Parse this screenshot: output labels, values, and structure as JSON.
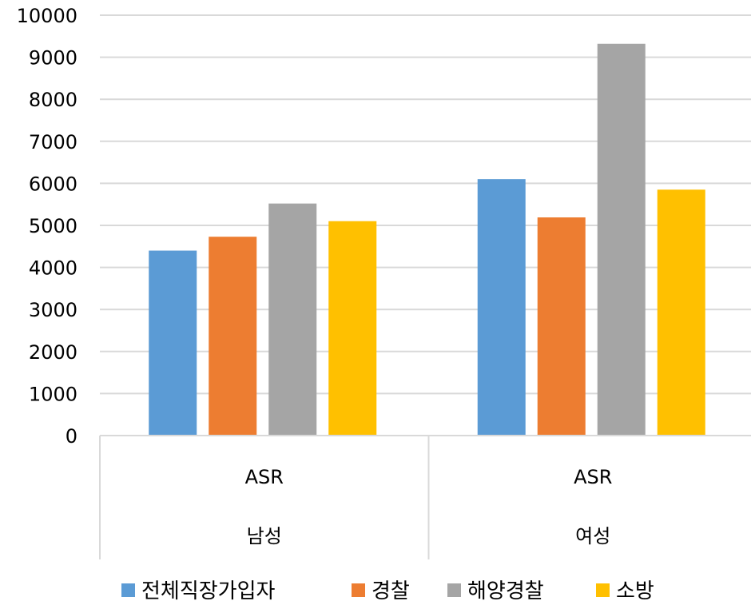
{
  "chart_data": {
    "type": "bar",
    "categories": [
      {
        "label": "ASR",
        "group": "남성"
      },
      {
        "label": "ASR",
        "group": "여성"
      }
    ],
    "series": [
      {
        "name": "전체직장가입자",
        "color": "#5B9BD5",
        "values": [
          4400,
          6100
        ]
      },
      {
        "name": "경찰",
        "color": "#ED7D31",
        "values": [
          4730,
          5190
        ]
      },
      {
        "name": "해양경찰",
        "color": "#A5A5A5",
        "values": [
          5520,
          9320
        ]
      },
      {
        "name": "소방",
        "color": "#FFC000",
        "values": [
          5100,
          5850
        ]
      }
    ],
    "ylim": [
      0,
      10000
    ],
    "yticks": [
      "0",
      "1000",
      "2000",
      "3000",
      "4000",
      "5000",
      "6000",
      "7000",
      "8000",
      "9000",
      "10000"
    ],
    "grid": true,
    "legend_position": "bottom"
  }
}
